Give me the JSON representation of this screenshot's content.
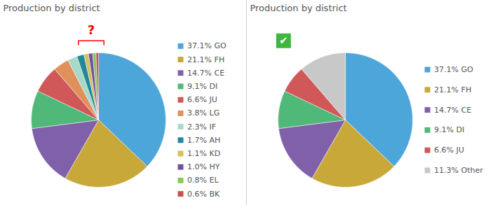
{
  "chart_data": [
    {
      "type": "pie",
      "title": "Production by district",
      "categories": [
        "37.1% GO",
        "21.1% FH",
        "14.7% CE",
        "9.1% DI",
        "6.6% JU",
        "3.8% LG",
        "2.3% IF",
        "1.7% AH",
        "1.1% KD",
        "1.0% HY",
        "0.8% EL",
        "0.6% BK"
      ],
      "values": [
        37.1,
        21.1,
        14.7,
        9.1,
        6.6,
        3.8,
        2.3,
        1.7,
        1.1,
        1.0,
        0.8,
        0.6
      ],
      "colors": [
        "#4da6d9",
        "#c8a838",
        "#8060a8",
        "#50b878",
        "#d05858",
        "#e0905a",
        "#a8d8c8",
        "#208898",
        "#d4c060",
        "#7050a0",
        "#88c858",
        "#c85050"
      ],
      "legend": "right",
      "annotations": [
        {
          "text": "?",
          "color": "#ff0000"
        }
      ]
    },
    {
      "type": "pie",
      "title": "Production by district",
      "categories": [
        "37.1% GO",
        "21.1% FH",
        "14.7% CE",
        "9.1% DI",
        "6.6% JU",
        "11.3% Other"
      ],
      "values": [
        37.1,
        21.1,
        14.7,
        9.1,
        6.6,
        11.3
      ],
      "colors": [
        "#4da6d9",
        "#c8a838",
        "#8060a8",
        "#50b878",
        "#d05858",
        "#c8c8c8"
      ],
      "legend": "right",
      "annotations": [
        {
          "text": "✔",
          "color": "#3db83d"
        }
      ]
    }
  ]
}
